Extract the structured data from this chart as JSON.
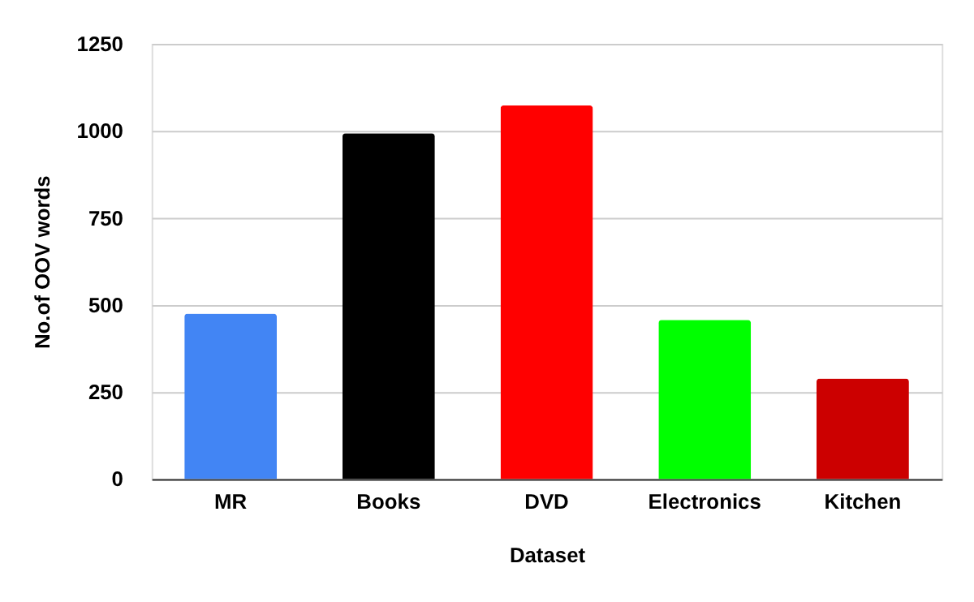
{
  "chart_data": {
    "type": "bar",
    "xlabel": "Dataset",
    "ylabel": "No.of OOV words",
    "categories": [
      "MR",
      "Books",
      "DVD",
      "Electronics",
      "Kitchen"
    ],
    "values": [
      475,
      993,
      1073,
      457,
      289
    ],
    "colors": [
      "#4285f4",
      "#000000",
      "#ff0000",
      "#00ff00",
      "#cc0000"
    ],
    "ylim": [
      0,
      1250
    ],
    "yticks": [
      0,
      250,
      500,
      750,
      1000,
      1250
    ],
    "grid": "y"
  }
}
